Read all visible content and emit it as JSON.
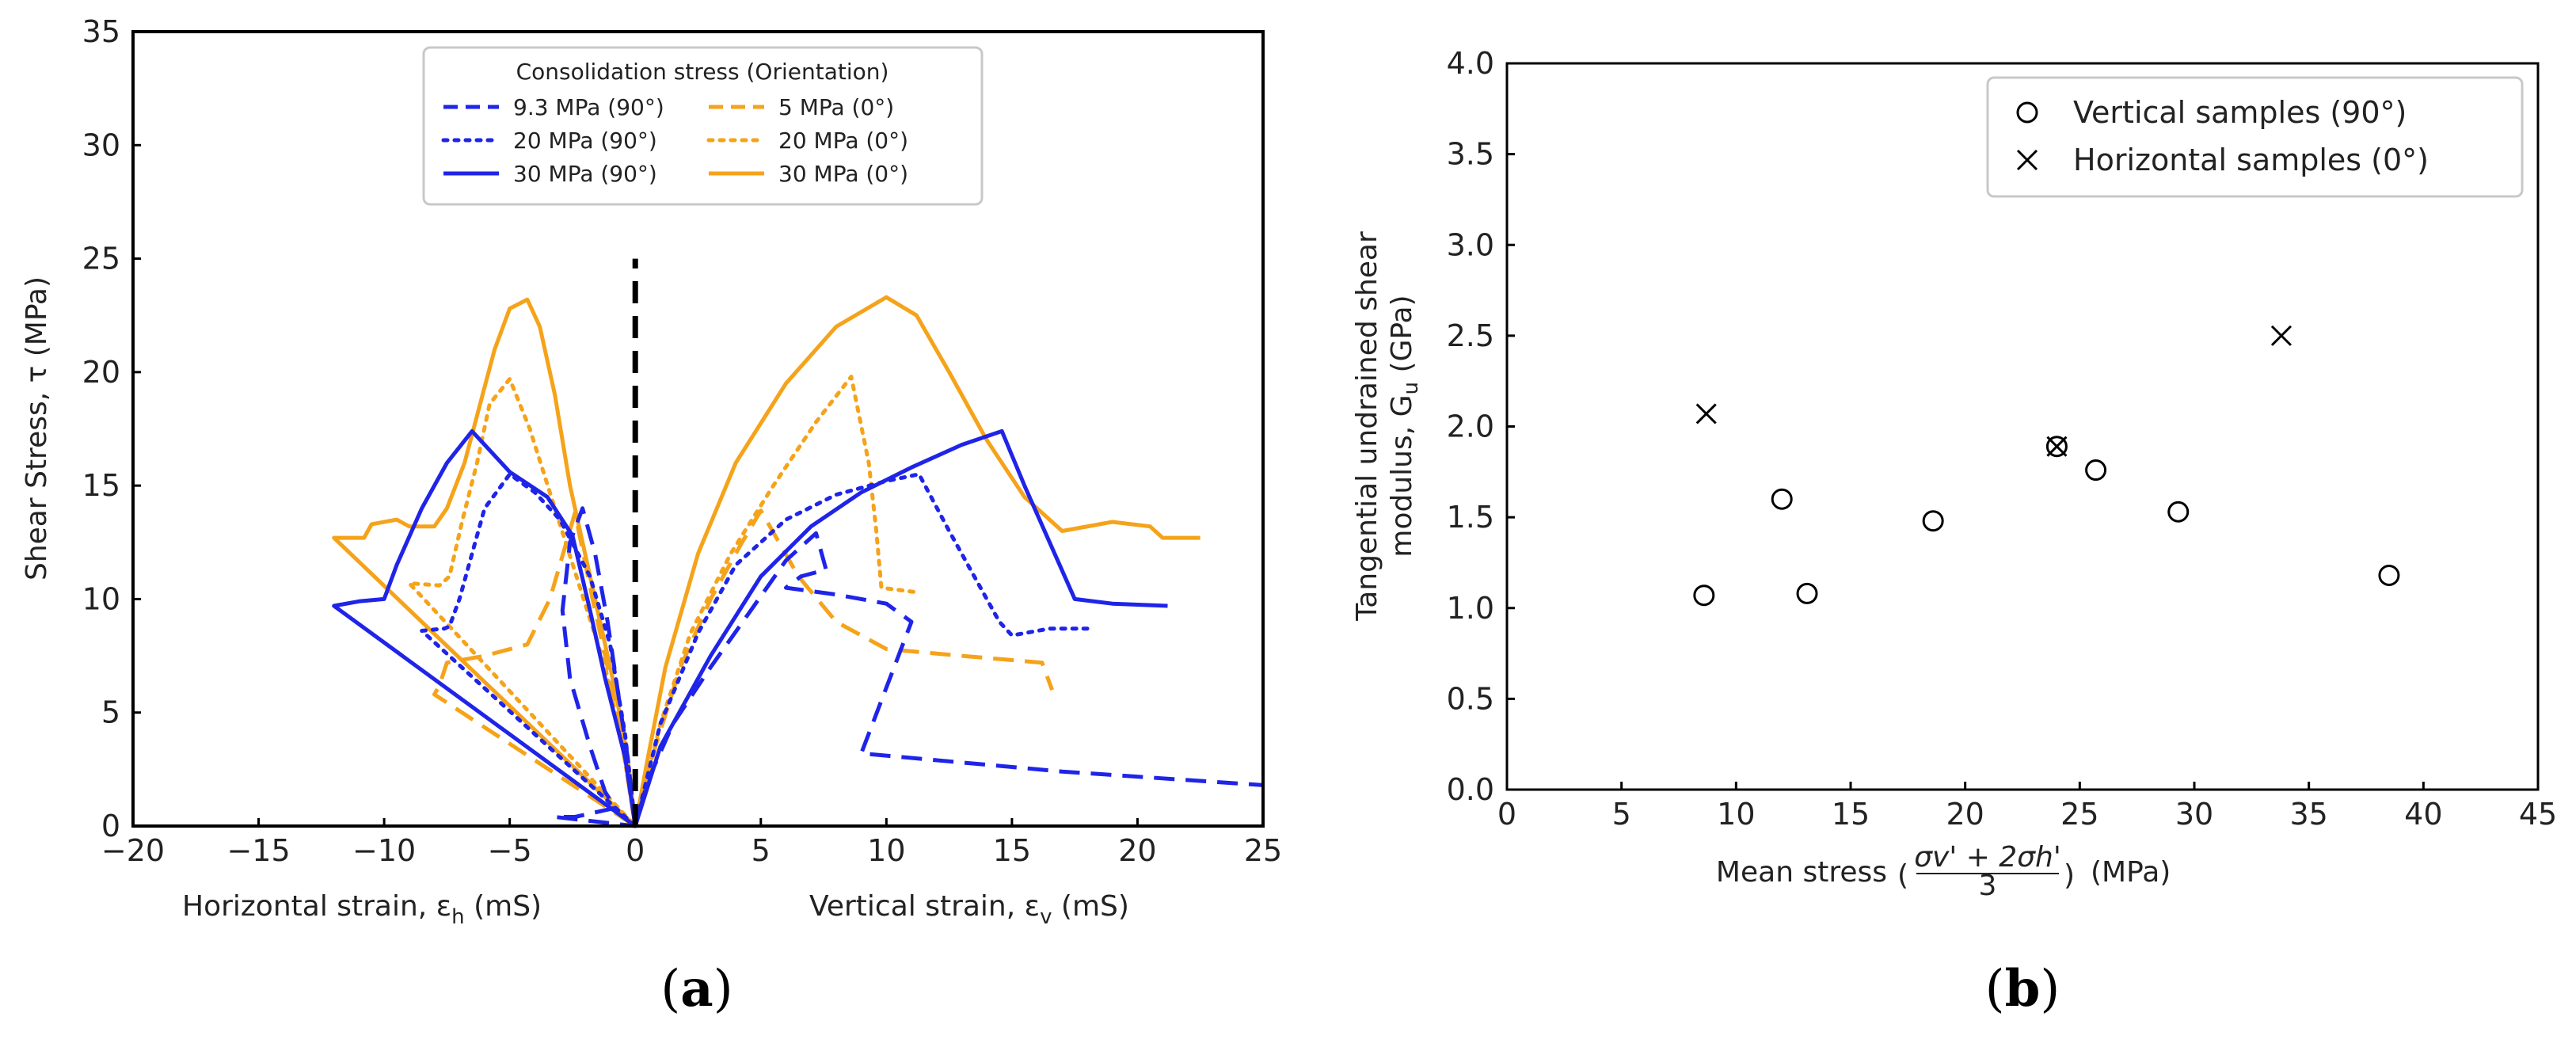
{
  "charts": {
    "a": {
      "type": "line",
      "panel_label": "a",
      "xlim": [
        -20,
        25
      ],
      "ylim": [
        0,
        35
      ],
      "xticks": [
        "−20",
        "−15",
        "−10",
        "−5",
        "0",
        "5",
        "10",
        "15",
        "20",
        "25"
      ],
      "yticks": [
        "0",
        "5",
        "10",
        "15",
        "20",
        "25",
        "30",
        "35"
      ],
      "ylabel": "Shear Stress, τ (MPa)",
      "xlabel_left": "Horizontal strain, ε",
      "xlabel_left_sub": "h",
      "xlabel_right": "Vertical strain, ε",
      "xlabel_right_sub": "v",
      "xlabel_unit": " (mS)",
      "legend_title": "Consolidation stress (Orientation)",
      "legend": [
        {
          "label": "9.3 MPa (90°)",
          "color": "#1f24e8",
          "dash": "dashed"
        },
        {
          "label": "5 MPa (0°)",
          "color": "#f5a31a",
          "dash": "dashed"
        },
        {
          "label": "20 MPa (90°)",
          "color": "#1f24e8",
          "dash": "dotted"
        },
        {
          "label": "20 MPa (0°)",
          "color": "#f5a31a",
          "dash": "dotted"
        },
        {
          "label": "30 MPa (90°)",
          "color": "#1f24e8",
          "dash": "solid"
        },
        {
          "label": "30 MPa (0°)",
          "color": "#f5a31a",
          "dash": "solid"
        }
      ],
      "divider": {
        "x": 0,
        "y": [
          0,
          25
        ]
      },
      "series": [
        {
          "name": "30 MPa (0°)",
          "color": "#f5a31a",
          "dash": "solid",
          "points": [
            [
              0,
              0
            ],
            [
              -0.3,
              3
            ],
            [
              -0.8,
              6
            ],
            [
              -1.4,
              9
            ],
            [
              -2,
              12
            ],
            [
              -2.6,
              15
            ],
            [
              -3.2,
              19
            ],
            [
              -3.8,
              22
            ],
            [
              -4.3,
              23.2
            ],
            [
              -5,
              22.8
            ],
            [
              -5.6,
              21
            ],
            [
              -6.2,
              18.5
            ],
            [
              -6.8,
              16
            ],
            [
              -7.5,
              14
            ],
            [
              -8,
              13.2
            ],
            [
              -9,
              13.2
            ],
            [
              -9.5,
              13.5
            ],
            [
              -10.5,
              13.3
            ],
            [
              -10.8,
              12.7
            ],
            [
              -12,
              12.7
            ],
            [
              0,
              0
            ],
            [
              0.5,
              3
            ],
            [
              1.2,
              7
            ],
            [
              2.5,
              12
            ],
            [
              4,
              16
            ],
            [
              6,
              19.5
            ],
            [
              8,
              22
            ],
            [
              10,
              23.3
            ],
            [
              11.2,
              22.5
            ],
            [
              12.5,
              20
            ],
            [
              14,
              17
            ],
            [
              15.5,
              14.5
            ],
            [
              17,
              13
            ],
            [
              19,
              13.4
            ],
            [
              20.5,
              13.2
            ],
            [
              21,
              12.7
            ],
            [
              22.5,
              12.7
            ]
          ]
        },
        {
          "name": "20 MPa (0°)",
          "color": "#f5a31a",
          "dash": "dotted",
          "points": [
            [
              0,
              0
            ],
            [
              -0.5,
              3.5
            ],
            [
              -1.2,
              7
            ],
            [
              -2.2,
              10.5
            ],
            [
              -3.2,
              14
            ],
            [
              -4.2,
              17.5
            ],
            [
              -5,
              19.7
            ],
            [
              -5.8,
              18.6
            ],
            [
              -6.3,
              16
            ],
            [
              -6.9,
              13.4
            ],
            [
              -7.4,
              11
            ],
            [
              -7.8,
              10.6
            ],
            [
              -9,
              10.7
            ],
            [
              0,
              0
            ],
            [
              1,
              4.5
            ],
            [
              2.2,
              8.5
            ],
            [
              3.8,
              12
            ],
            [
              5.5,
              15
            ],
            [
              7.2,
              17.8
            ],
            [
              8.6,
              19.8
            ],
            [
              9.3,
              16
            ],
            [
              9.6,
              13
            ],
            [
              9.8,
              10.5
            ],
            [
              11.2,
              10.3
            ]
          ]
        },
        {
          "name": "5 MPa (0°)",
          "color": "#f5a31a",
          "dash": "dashed",
          "points": [
            [
              0,
              0
            ],
            [
              -0.5,
              3.5
            ],
            [
              -1.1,
              7
            ],
            [
              -1.7,
              10
            ],
            [
              -2.4,
              13.8
            ],
            [
              -3.4,
              10
            ],
            [
              -4.3,
              8
            ],
            [
              -6,
              7.5
            ],
            [
              -7.5,
              7.2
            ],
            [
              -7.8,
              6.2
            ],
            [
              -8,
              5.8
            ],
            [
              0,
              0
            ],
            [
              0.8,
              3.5
            ],
            [
              1.8,
              7
            ],
            [
              3,
              10
            ],
            [
              4.2,
              12.4
            ],
            [
              5,
              13.9
            ],
            [
              6.5,
              11
            ],
            [
              8,
              9
            ],
            [
              10,
              7.8
            ],
            [
              13,
              7.5
            ],
            [
              16.2,
              7.2
            ],
            [
              16.6,
              6
            ]
          ]
        },
        {
          "name": "30 MPa (90°)",
          "color": "#1f24e8",
          "dash": "solid",
          "points": [
            [
              0,
              0
            ],
            [
              -0.4,
              3
            ],
            [
              -1.2,
              6.5
            ],
            [
              -1.8,
              9.5
            ],
            [
              -2.5,
              12.8
            ],
            [
              -3.5,
              14.5
            ],
            [
              -5,
              15.6
            ],
            [
              -6.5,
              17.4
            ],
            [
              -7.5,
              16
            ],
            [
              -8.5,
              14
            ],
            [
              -9.5,
              11.5
            ],
            [
              -10,
              10
            ],
            [
              -11,
              9.9
            ],
            [
              -12,
              9.7
            ],
            [
              0,
              0
            ],
            [
              1,
              3.5
            ],
            [
              3,
              7.5
            ],
            [
              5,
              11
            ],
            [
              7,
              13.2
            ],
            [
              9,
              14.7
            ],
            [
              11,
              15.8
            ],
            [
              13,
              16.8
            ],
            [
              14.6,
              17.4
            ],
            [
              15.5,
              15
            ],
            [
              16.5,
              12.5
            ],
            [
              17.5,
              10
            ],
            [
              19,
              9.8
            ],
            [
              21.2,
              9.7
            ]
          ]
        },
        {
          "name": "20 MPa (90°)",
          "color": "#1f24e8",
          "dash": "dotted",
          "points": [
            [
              0,
              0
            ],
            [
              -0.4,
              4
            ],
            [
              -1,
              8
            ],
            [
              -1.8,
              11
            ],
            [
              -3,
              13.5
            ],
            [
              -4,
              14.7
            ],
            [
              -5,
              15.5
            ],
            [
              -6,
              14
            ],
            [
              -6.5,
              12
            ],
            [
              -7,
              10
            ],
            [
              -7.4,
              8.8
            ],
            [
              -7.6,
              8.7
            ],
            [
              -8.5,
              8.6
            ],
            [
              0,
              0
            ],
            [
              1,
              4.5
            ],
            [
              2.5,
              8.5
            ],
            [
              4,
              11.5
            ],
            [
              6,
              13.5
            ],
            [
              8,
              14.6
            ],
            [
              10,
              15.2
            ],
            [
              11.3,
              15.5
            ],
            [
              12.5,
              13
            ],
            [
              13.5,
              11
            ],
            [
              14.5,
              9
            ],
            [
              15,
              8.4
            ],
            [
              16.5,
              8.7
            ],
            [
              18,
              8.7
            ]
          ]
        },
        {
          "name": "9.3 MPa (90°)",
          "color": "#1f24e8",
          "dash": "dashed",
          "points": [
            [
              0,
              0
            ],
            [
              -0.3,
              3
            ],
            [
              -0.7,
              6
            ],
            [
              -1.1,
              9
            ],
            [
              -1.6,
              12
            ],
            [
              -2.1,
              14
            ],
            [
              -2.6,
              12.5
            ],
            [
              -2.9,
              9.5
            ],
            [
              -2.6,
              6.5
            ],
            [
              -1.8,
              3.5
            ],
            [
              -1.2,
              1.5
            ],
            [
              -0.8,
              0.8
            ],
            [
              -2,
              0.5
            ],
            [
              -2.4,
              0.4
            ],
            [
              -3.2,
              0.4
            ],
            [
              0,
              0
            ],
            [
              0.5,
              2
            ],
            [
              1.5,
              4.5
            ],
            [
              3,
              7
            ],
            [
              4.6,
              9.5
            ],
            [
              6,
              11.7
            ],
            [
              7.2,
              12.9
            ],
            [
              7.6,
              11.3
            ],
            [
              6.6,
              11
            ],
            [
              6,
              10.5
            ],
            [
              8,
              10.2
            ],
            [
              10,
              9.8
            ],
            [
              11,
              9
            ],
            [
              9,
              3.2
            ],
            [
              17,
              2.4
            ],
            [
              25,
              1.8
            ]
          ]
        }
      ]
    },
    "b": {
      "type": "scatter",
      "panel_label": "b",
      "xlim": [
        0,
        45
      ],
      "ylim": [
        0,
        4
      ],
      "xticks": [
        "0",
        "5",
        "10",
        "15",
        "20",
        "25",
        "30",
        "35",
        "40",
        "45"
      ],
      "yticks": [
        "0.0",
        "0.5",
        "1.0",
        "1.5",
        "2.0",
        "2.5",
        "3.0",
        "3.5",
        "4.0"
      ],
      "ylabel_line1": "Tangential undrained shear",
      "ylabel_line2": "modulus, G",
      "ylabel_sub": "u",
      "ylabel_unit": " (GPa)",
      "xlabel": "Mean stress",
      "xlabel_frac_num": "σv' + 2σh'",
      "xlabel_frac_den": "3",
      "xlabel_unit": "(MPa)",
      "legend": [
        {
          "label": "Vertical samples (90°)",
          "marker": "circle"
        },
        {
          "label": "Horizontal samples (0°)",
          "marker": "x"
        }
      ],
      "series": [
        {
          "name": "Vertical samples (90°)",
          "marker": "circle",
          "points": [
            [
              8.6,
              1.07
            ],
            [
              12,
              1.6
            ],
            [
              13.1,
              1.08
            ],
            [
              18.6,
              1.48
            ],
            [
              24,
              1.89
            ],
            [
              25.7,
              1.76
            ],
            [
              29.3,
              1.53
            ],
            [
              38.5,
              1.18
            ]
          ]
        },
        {
          "name": "Horizontal samples (0°)",
          "marker": "x",
          "points": [
            [
              8.7,
              2.07
            ],
            [
              24,
              1.89
            ],
            [
              33.8,
              2.5
            ]
          ]
        }
      ]
    }
  }
}
